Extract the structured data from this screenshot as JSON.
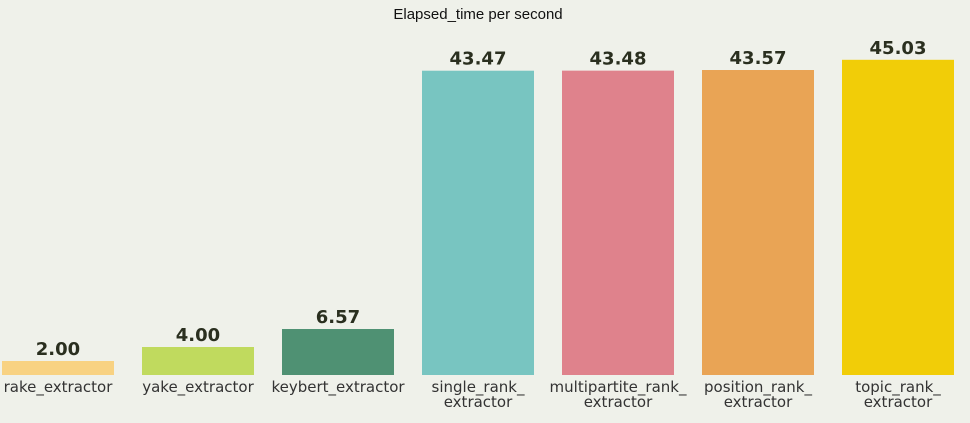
{
  "chart_data": {
    "type": "bar",
    "title": "Elapsed_time per second",
    "xlabel": "",
    "ylabel": "",
    "ylim": [
      0,
      48
    ],
    "grid": false,
    "categories": [
      "rake_extractor",
      "yake_extractor",
      "keybert_extractor",
      "single_rank_\nextractor",
      "multipartite_rank_\nextractor",
      "position_rank_\nextractor",
      "topic_rank_\nextractor"
    ],
    "values": [
      2.0,
      4.0,
      6.57,
      43.47,
      43.48,
      43.57,
      45.03
    ],
    "value_labels": [
      "2.00",
      "4.00",
      "6.57",
      "43.47",
      "43.48",
      "43.57",
      "45.03"
    ],
    "colors": [
      "#f8d282",
      "#c0da5e",
      "#4f9173",
      "#78c5c1",
      "#df828c",
      "#e9a455",
      "#f1cd08"
    ]
  }
}
